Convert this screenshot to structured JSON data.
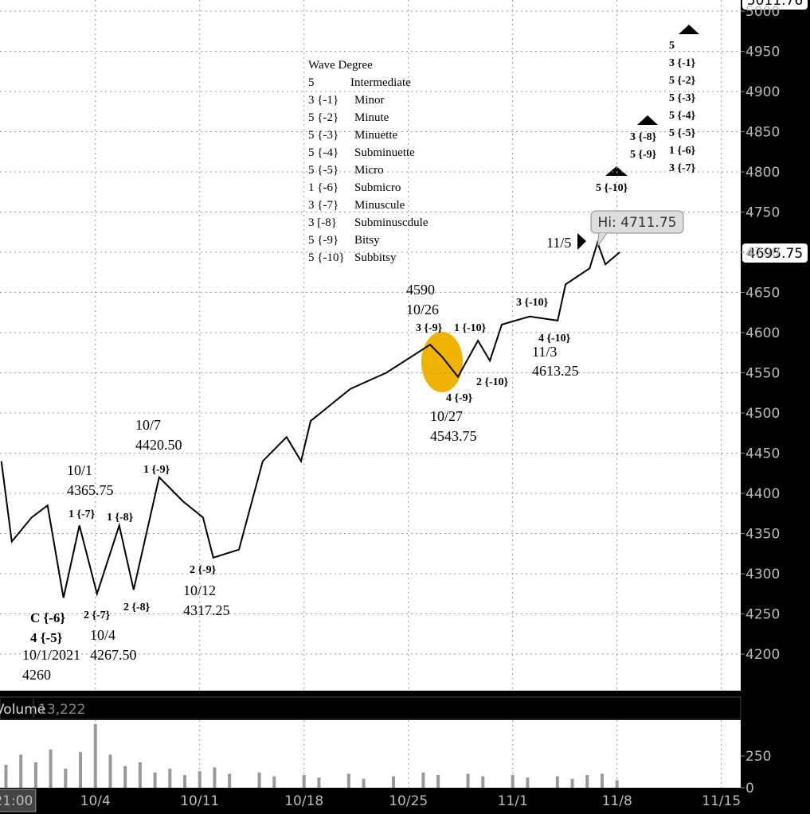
{
  "chart_data": {
    "type": "line",
    "x": [
      -2.31,
      -1.61,
      -0.28,
      0.79,
      1.86,
      2.93,
      4.11,
      5.6,
      6.57,
      8.28,
      9.88,
      11.22,
      11.91,
      13.63,
      15.23,
      16.83,
      17.8,
      18.44,
      21.11,
      23.52,
      26.46,
      27.26,
      28.33,
      29.67,
      30.47,
      31.27,
      33.14,
      35.02,
      35.55,
      37.16,
      37.69,
      38.22,
      39.19
    ],
    "values": [
      4440,
      4340,
      4370,
      4385,
      4270,
      4360,
      4275,
      4360,
      4280,
      4420,
      4390,
      4370,
      4320,
      4330,
      4440,
      4470,
      4440,
      4490,
      4530,
      4550,
      4585,
      4570,
      4545,
      4590,
      4565,
      4610,
      4620,
      4615,
      4660,
      4680,
      4712,
      4685,
      4700
    ],
    "color": "#000000",
    "xlim": [
      -2.4,
      47.3
    ],
    "ylim": [
      4154.5,
      5013.9
    ],
    "xticks": [
      {
        "value": -1.5,
        "label": "21:00"
      },
      {
        "value": 4,
        "label": "10/4"
      },
      {
        "value": 11,
        "label": "10/11"
      },
      {
        "value": 18,
        "label": "10/18"
      },
      {
        "value": 25,
        "label": "10/25"
      },
      {
        "value": 32,
        "label": "11/1"
      },
      {
        "value": 39,
        "label": "11/8"
      },
      {
        "value": 46,
        "label": "11/15"
      }
    ],
    "yticks": [
      4200,
      4250,
      4300,
      4350,
      4400,
      4450,
      4500,
      4550,
      4600,
      4650,
      4700,
      4750,
      4800,
      4850,
      4900,
      4950,
      5000
    ],
    "grid": true,
    "top_label": "5011.76",
    "last_label": "4695.75",
    "high_label": "Hi: 4711.75",
    "volume": {
      "name": "Volume",
      "readout": "13,222",
      "color": "#999999",
      "x": [
        -2,
        -1,
        0,
        1,
        2,
        3,
        4,
        5,
        6,
        7,
        8,
        9,
        10,
        11,
        12,
        13,
        15,
        16,
        18,
        19,
        21,
        22,
        24,
        26,
        27,
        29,
        30,
        32,
        33,
        35,
        36,
        37,
        38,
        39
      ],
      "values": [
        180,
        260,
        200,
        300,
        150,
        280,
        500,
        260,
        170,
        200,
        120,
        150,
        100,
        130,
        160,
        110,
        120,
        90,
        100,
        80,
        110,
        70,
        90,
        120,
        100,
        110,
        90,
        100,
        80,
        90,
        70,
        100,
        110,
        60
      ],
      "ylim": [
        0,
        531
      ],
      "yticks": [
        0,
        250
      ]
    },
    "legend_title": "Wave Degree",
    "legend_rows": [
      [
        "5",
        "Intermediate"
      ],
      [
        "3 {-1}",
        "Minor"
      ],
      [
        "5 {-2}",
        "Minute"
      ],
      [
        "5 {-3}",
        "Minuette"
      ],
      [
        "5 {-4}",
        "Subminuette"
      ],
      [
        "5 {-5}",
        "Micro"
      ],
      [
        "1 {-6}",
        "Submicro"
      ],
      [
        "3 {-7}",
        "Minuscule"
      ],
      [
        "3 [-8}",
        "Subminuscdule"
      ],
      [
        "5 {-9}",
        "Bitsy"
      ],
      [
        "5 {-10}",
        "Subbitsy"
      ]
    ],
    "annotations": [
      "C {-6}",
      "4 {-5}",
      "10/1/2021",
      "4260",
      "2 {-7}",
      "10/4",
      "4267.50",
      "2 {-8}",
      "1 {-7}",
      "1 {-8}",
      "10/1",
      "4365.75",
      "10/7",
      "4420.50",
      "1 {-9}",
      "2 {-9}",
      "10/12",
      "4317.25",
      "4590",
      "10/26",
      "3 {-9}",
      "1 {-10}",
      "4 {-9}",
      "10/27",
      "4543.75",
      "2 {-10}",
      "3 {-10}",
      "4 {-10}",
      "11/3",
      "4613.25",
      "11/5",
      "5 {-10}",
      "3 {-8}",
      "5 {-9}",
      "5",
      "3 {-1}",
      "5 {-2}",
      "5 {-3}",
      "5 {-4}",
      "5 {-5}",
      "1 {-6}",
      "3 {-7}"
    ]
  }
}
